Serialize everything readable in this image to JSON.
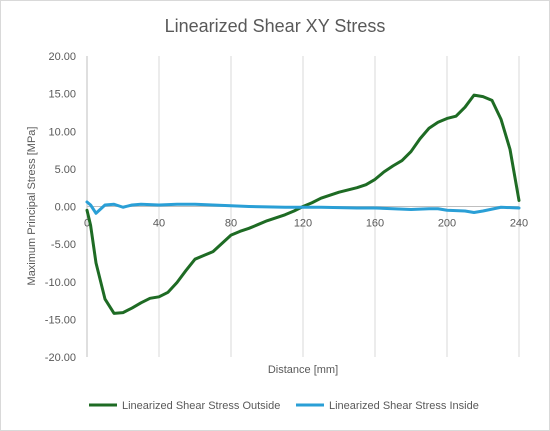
{
  "chart_data": {
    "type": "line",
    "title": "Linearized Shear XY Stress",
    "xlabel": "Distance [mm]",
    "ylabel": "Maximum Principal Stress [MPa]",
    "xlim": [
      0,
      240
    ],
    "ylim": [
      -20,
      20
    ],
    "x_ticks": [
      "40",
      "80",
      "120",
      "160",
      "200",
      "240"
    ],
    "y_ticks": [
      "20.00",
      "15.00",
      "10.00",
      "5.00",
      "0.00",
      "-5.00",
      "-10.00",
      "-15.00",
      "-20.00"
    ],
    "x_tick_values": [
      40,
      80,
      120,
      160,
      200,
      240
    ],
    "y_tick_values": [
      20,
      15,
      10,
      5,
      0,
      -5,
      -10,
      -15,
      -20
    ],
    "grid": "vertical",
    "legend": "bottom",
    "series": [
      {
        "name": "Linearized Shear Stress Outside",
        "color": "#1e6b24",
        "x": [
          0,
          2,
          5,
          10,
          15,
          20,
          25,
          30,
          35,
          40,
          45,
          50,
          55,
          60,
          65,
          70,
          75,
          80,
          85,
          90,
          95,
          100,
          105,
          110,
          115,
          120,
          125,
          130,
          135,
          140,
          145,
          150,
          155,
          160,
          165,
          170,
          175,
          180,
          185,
          190,
          195,
          200,
          205,
          210,
          215,
          220,
          225,
          230,
          235,
          240
        ],
        "y": [
          -0.5,
          -2.5,
          -7.5,
          -12.3,
          -14.2,
          -14.1,
          -13.5,
          -12.8,
          -12.2,
          -12.0,
          -11.4,
          -10.1,
          -8.5,
          -7.0,
          -6.5,
          -6.0,
          -4.9,
          -3.8,
          -3.3,
          -2.9,
          -2.4,
          -1.9,
          -1.5,
          -1.1,
          -0.6,
          0.0,
          0.5,
          1.1,
          1.5,
          1.9,
          2.2,
          2.5,
          2.9,
          3.6,
          4.6,
          5.4,
          6.1,
          7.3,
          9.0,
          10.4,
          11.2,
          11.7,
          12.0,
          13.2,
          14.8,
          14.6,
          14.1,
          11.6,
          7.6,
          0.8
        ]
      },
      {
        "name": "Linearized Shear Stress Inside",
        "color": "#2a9fd6",
        "x": [
          0,
          2,
          5,
          10,
          15,
          20,
          25,
          30,
          40,
          50,
          60,
          70,
          80,
          90,
          100,
          110,
          120,
          130,
          140,
          150,
          160,
          170,
          180,
          190,
          195,
          200,
          210,
          215,
          220,
          230,
          240
        ],
        "y": [
          0.6,
          0.2,
          -0.9,
          0.2,
          0.3,
          -0.1,
          0.2,
          0.3,
          0.2,
          0.3,
          0.3,
          0.2,
          0.1,
          0.0,
          -0.05,
          -0.1,
          -0.1,
          -0.1,
          -0.15,
          -0.2,
          -0.2,
          -0.3,
          -0.4,
          -0.3,
          -0.3,
          -0.5,
          -0.6,
          -0.8,
          -0.6,
          -0.1,
          -0.2
        ]
      }
    ]
  }
}
